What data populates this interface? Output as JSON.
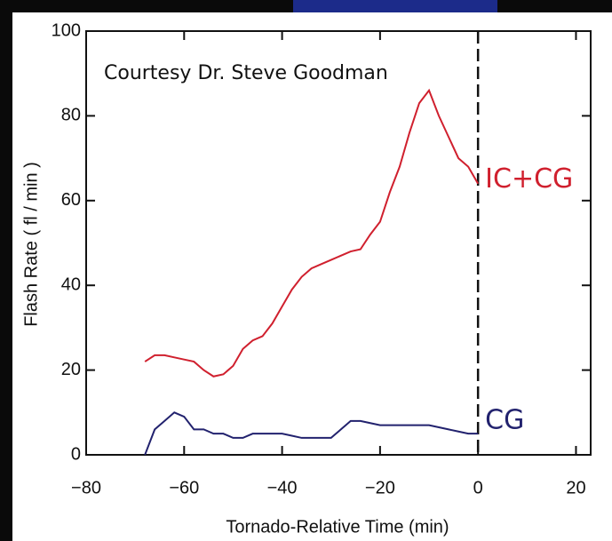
{
  "chart_data": {
    "type": "line",
    "annotation": "Courtesy Dr. Steve Goodman",
    "x_label": "Tornado-Relative Time (min)",
    "y_label": "Flash Rate  ( fl / min )",
    "x": [
      -68,
      -66,
      -64,
      -62,
      -60,
      -58,
      -56,
      -54,
      -52,
      -50,
      -48,
      -46,
      -44,
      -42,
      -40,
      -38,
      -36,
      -34,
      -32,
      -30,
      -28,
      -26,
      -24,
      -22,
      -20,
      -18,
      -16,
      -14,
      -12,
      -10,
      -8,
      -6,
      -4,
      -2,
      0
    ],
    "series": [
      {
        "name": "IC+CG",
        "color": "#d0202e",
        "values": [
          22,
          23.5,
          23.5,
          23,
          22.5,
          22,
          20,
          18.5,
          19,
          21,
          25,
          27,
          28,
          31,
          35,
          39,
          42,
          44,
          45,
          46,
          47,
          48,
          48.5,
          52,
          55,
          62,
          68,
          76,
          83,
          86,
          80,
          75,
          70,
          68,
          64
        ]
      },
      {
        "name": "CG",
        "color": "#22226e",
        "values": [
          0,
          6,
          8,
          10,
          9,
          6,
          6,
          5,
          5,
          4,
          4,
          5,
          5,
          5,
          5,
          4.5,
          4,
          4,
          4,
          4,
          6,
          8,
          8,
          7.5,
          7,
          7,
          7,
          7,
          7,
          7,
          6.5,
          6,
          5.5,
          5,
          5
        ]
      }
    ],
    "xlim": [
      -80,
      23
    ],
    "ylim": [
      0,
      100
    ],
    "xticks": [
      {
        "value": -80,
        "label": "−80"
      },
      {
        "value": -60,
        "label": "−60"
      },
      {
        "value": -40,
        "label": "−40"
      },
      {
        "value": -20,
        "label": "−20"
      },
      0,
      20
    ],
    "yticks": [
      0,
      20,
      40,
      60,
      80,
      100
    ]
  }
}
